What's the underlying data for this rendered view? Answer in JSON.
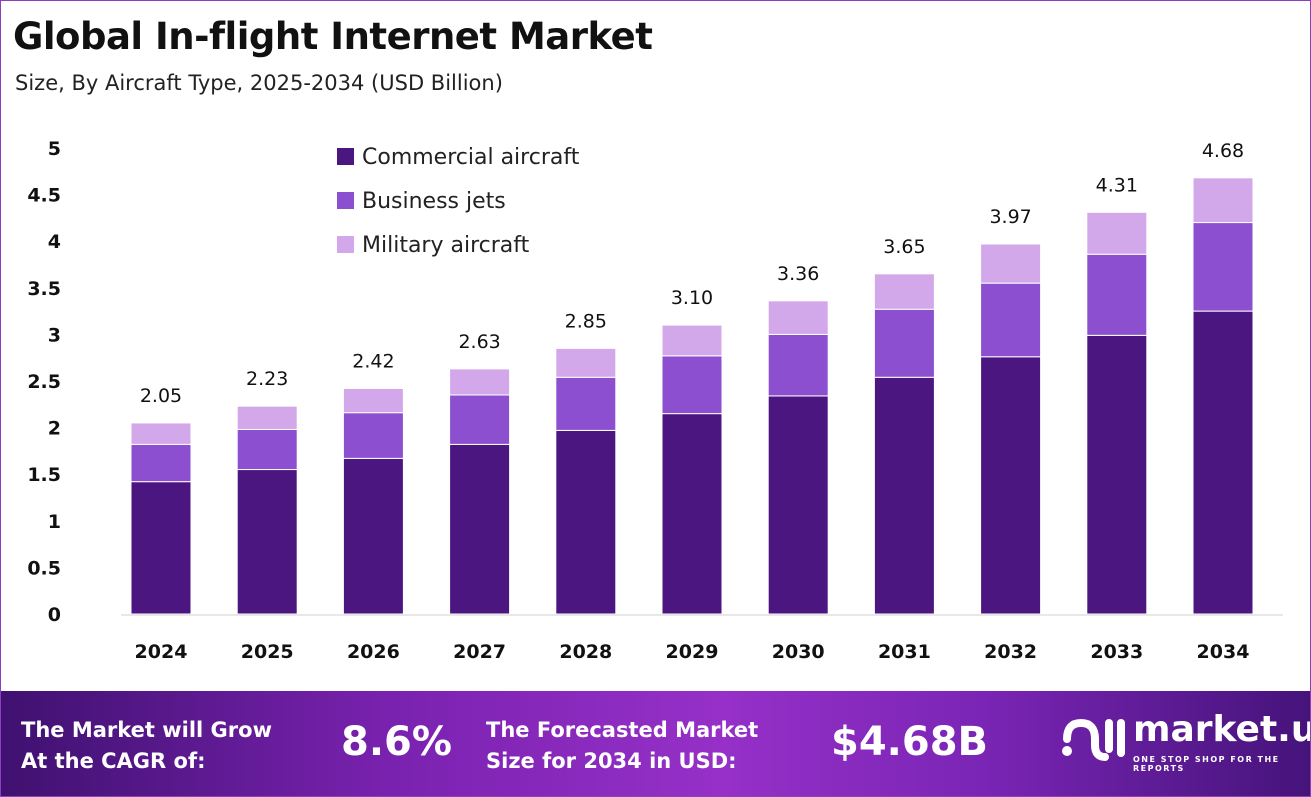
{
  "title": "Global In-flight Internet Market",
  "subtitle": "Size, By Aircraft Type, 2025-2034 (USD Billion)",
  "chart_data": {
    "type": "bar",
    "stacked": true,
    "categories": [
      "2024",
      "2025",
      "2026",
      "2027",
      "2028",
      "2029",
      "2030",
      "2031",
      "2032",
      "2033",
      "2034"
    ],
    "series": [
      {
        "name": "Commercial aircraft",
        "color": "#4b1680",
        "values": [
          1.42,
          1.55,
          1.67,
          1.82,
          1.97,
          2.15,
          2.34,
          2.54,
          2.76,
          2.99,
          3.25
        ]
      },
      {
        "name": "Business jets",
        "color": "#8b4fcf",
        "values": [
          0.4,
          0.43,
          0.49,
          0.53,
          0.57,
          0.62,
          0.66,
          0.73,
          0.79,
          0.87,
          0.95
        ]
      },
      {
        "name": "Military aircraft",
        "color": "#d3a8ea",
        "values": [
          0.23,
          0.25,
          0.26,
          0.28,
          0.31,
          0.33,
          0.36,
          0.38,
          0.42,
          0.45,
          0.48
        ]
      }
    ],
    "totals": [
      "2.05",
      "2.23",
      "2.42",
      "2.63",
      "2.85",
      "3.10",
      "3.36",
      "3.65",
      "3.97",
      "4.31",
      "4.68"
    ],
    "yticks": [
      "0",
      "0.5",
      "1",
      "1.5",
      "2",
      "2.5",
      "3",
      "3.5",
      "4",
      "4.5",
      "5"
    ],
    "ylim": [
      0,
      5
    ],
    "grid": false,
    "legend": "top-left"
  },
  "banner": {
    "cagr_label_1": "The Market will Grow",
    "cagr_label_2": "At the CAGR of:",
    "cagr_value": "8.6%",
    "forecast_label_1": "The Forecasted Market",
    "forecast_label_2": "Size for 2034 in USD:",
    "forecast_value": "$4.68B",
    "logo_text": "market.us",
    "logo_tagline": "ONE STOP SHOP FOR THE REPORTS"
  }
}
